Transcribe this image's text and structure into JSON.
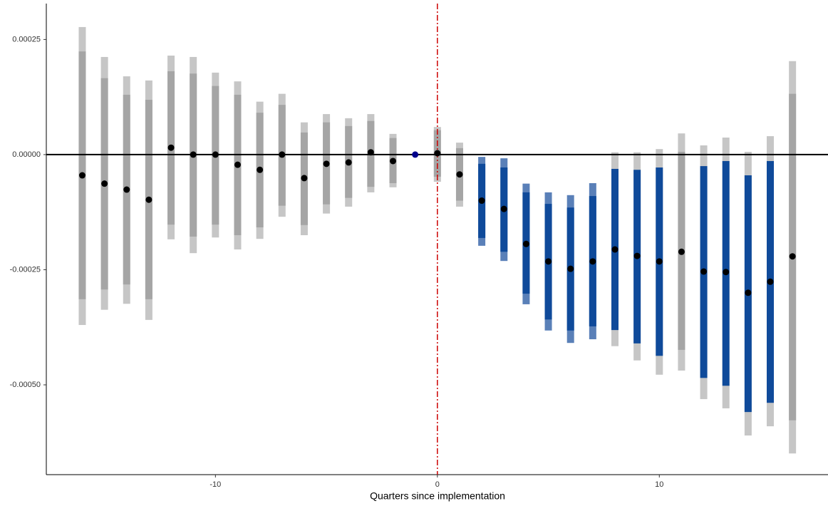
{
  "chart_data": {
    "type": "event-study",
    "x_label": "Quarters since implementation",
    "x": [
      -16,
      -15,
      -14,
      -13,
      -12,
      -11,
      -10,
      -9,
      -8,
      -7,
      -6,
      -5,
      -4,
      -3,
      -2,
      -1,
      0,
      1,
      2,
      3,
      4,
      5,
      6,
      7,
      8,
      9,
      10,
      11,
      12,
      13,
      14,
      15,
      16
    ],
    "values": [
      -4.5e-05,
      -6.3e-05,
      -7.6e-05,
      -9.8e-05,
      1.5e-05,
      0,
      0,
      -2.2e-05,
      -3.3e-05,
      0,
      -5.1e-05,
      -2e-05,
      -1.7e-05,
      5e-06,
      -1.4e-05,
      0,
      3e-06,
      -4.3e-05,
      -0.0001,
      -0.000118,
      -0.000194,
      -0.000232,
      -0.000248,
      -0.000232,
      -0.000206,
      -0.00022,
      -0.000232,
      -0.000211,
      -0.000254,
      -0.000255,
      -0.0003,
      -0.000276,
      -0.000221
    ],
    "inner_lower": [
      -0.000314,
      -0.000293,
      -0.000282,
      -0.000314,
      -0.000152,
      -0.000178,
      -0.000152,
      -0.000175,
      -0.000158,
      -0.000111,
      -0.000153,
      -0.000108,
      -9.4e-05,
      -7e-05,
      -6.2e-05,
      null,
      -4.8e-05,
      -0.0001,
      -0.000181,
      -0.000211,
      -0.000302,
      -0.000358,
      -0.000382,
      -0.000373,
      -0.000381,
      -0.00041,
      -0.000437,
      -0.000424,
      -0.000485,
      -0.000502,
      -0.000559,
      -0.000539,
      -0.000577
    ],
    "inner_upper": [
      0.000224,
      0.000166,
      0.00013,
      0.000119,
      0.000181,
      0.000176,
      0.000149,
      0.00013,
      9.1e-05,
      0.000108,
      4.8e-05,
      7e-05,
      6.2e-05,
      7.3e-05,
      3.6e-05,
      null,
      5.3e-05,
      1.4e-05,
      -2e-05,
      -2.8e-05,
      -8.2e-05,
      -0.000107,
      -0.000115,
      -9e-05,
      -3.1e-05,
      -3.3e-05,
      -2.8e-05,
      6e-06,
      -2.5e-05,
      -1.4e-05,
      -4.5e-05,
      -1.4e-05,
      0.000132
    ],
    "outer_lower": [
      -0.00037,
      -0.000337,
      -0.000324,
      -0.000359,
      -0.000184,
      -0.000214,
      -0.00018,
      -0.000206,
      -0.000183,
      -0.000135,
      -0.000175,
      -0.000128,
      -0.000113,
      -8.2e-05,
      -7.1e-05,
      null,
      -5.9e-05,
      -0.000113,
      -0.000198,
      -0.000231,
      -0.000325,
      -0.000382,
      -0.000409,
      -0.000401,
      -0.000416,
      -0.000447,
      -0.000478,
      -0.000469,
      -0.000531,
      -0.000551,
      -0.00061,
      -0.00059,
      -0.000649
    ],
    "outer_upper": [
      0.000277,
      0.000212,
      0.00017,
      0.000161,
      0.000215,
      0.000212,
      0.000178,
      0.000159,
      0.000115,
      0.000132,
      7e-05,
      8.8e-05,
      7.9e-05,
      8.8e-05,
      4.5e-05,
      null,
      6e-05,
      2.6e-05,
      -5e-06,
      -8e-06,
      -6.3e-05,
      -8.2e-05,
      -8.8e-05,
      -6.2e-05,
      5e-06,
      5e-06,
      1.2e-05,
      4.6e-05,
      2e-05,
      3.7e-05,
      6e-06,
      4e-05,
      0.000203
    ],
    "reference_x": -1,
    "colors": {
      "significant_inner": "#0f4a9a",
      "significant_outer": "#5a80b8",
      "inner": "#a5a5a5",
      "outer": "#c6c6c6",
      "point": "#000000",
      "reference_point": "#00008b",
      "zero_line": "#000000",
      "event_line": "#cc0000"
    },
    "xlim": [
      -17.62,
      17.6
    ],
    "ylim": [
      -0.000695,
      0.000328
    ],
    "xticks": [
      -10,
      0,
      10
    ],
    "yticks": [
      {
        "value": 0.00025,
        "label": "0.00025"
      },
      {
        "value": 0,
        "label": "0.00000"
      },
      {
        "value": -0.00025,
        "label": "-0.00025"
      },
      {
        "value": -0.0005,
        "label": "-0.00050"
      }
    ],
    "hline": 0,
    "vline": 0
  }
}
